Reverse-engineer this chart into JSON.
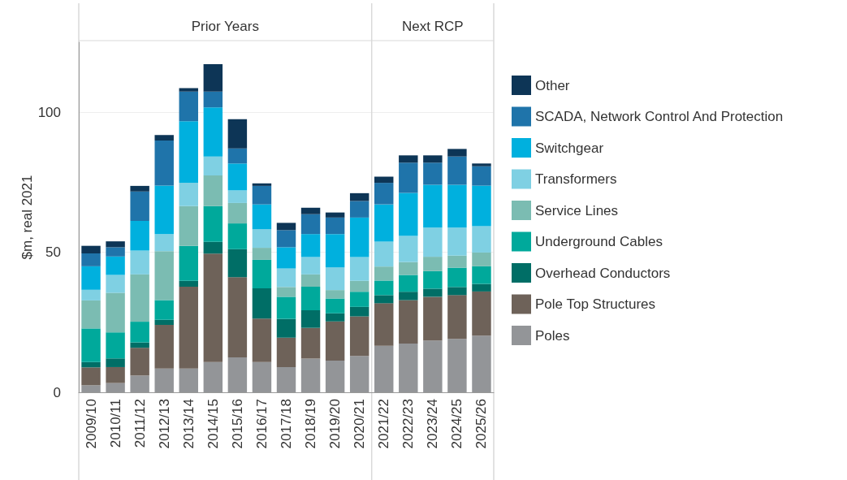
{
  "chart_data": {
    "type": "bar",
    "stacked": true,
    "ylabel": "$m, real 2021",
    "categories": [
      "2009/10",
      "2010/11",
      "2011/12",
      "2012/13",
      "2013/14",
      "2014/15",
      "2015/16",
      "2016/17",
      "2017/18",
      "2018/19",
      "2019/20",
      "2020/21",
      "2021/22",
      "2022/23",
      "2023/24",
      "2024/25",
      "2025/26"
    ],
    "series": [
      {
        "name": "Poles",
        "color": "#939598",
        "values": [
          2.5,
          3.3,
          6.0,
          8.5,
          8.5,
          10.8,
          12.5,
          10.8,
          9.0,
          12.0,
          11.3,
          13.0,
          16.6,
          17.4,
          18.5,
          19.1,
          20.2
        ]
      },
      {
        "name": "Pole Top Structures",
        "color": "#6e6259",
        "values": [
          6.4,
          5.7,
          9.9,
          15.6,
          29.2,
          38.7,
          28.6,
          15.5,
          10.5,
          11.0,
          14.0,
          14.1,
          15.2,
          15.5,
          15.6,
          15.6,
          15.8
        ]
      },
      {
        "name": "Overhead Conductors",
        "color": "#006e66",
        "values": [
          1.9,
          3.1,
          1.9,
          1.8,
          2.1,
          4.2,
          10.0,
          10.8,
          6.7,
          6.3,
          2.9,
          3.4,
          2.9,
          3.0,
          2.9,
          2.9,
          2.7
        ]
      },
      {
        "name": "Underground Cables",
        "color": "#00a99b",
        "values": [
          12.0,
          9.3,
          7.4,
          7.0,
          12.5,
          12.8,
          9.2,
          10.2,
          7.9,
          8.4,
          5.3,
          5.4,
          5.2,
          6.0,
          6.3,
          6.9,
          6.3
        ]
      },
      {
        "name": "Service Lines",
        "color": "#7bbcb2",
        "values": [
          10.0,
          14.1,
          16.9,
          17.5,
          14.2,
          10.9,
          7.3,
          4.3,
          3.5,
          4.4,
          3.0,
          3.9,
          5.0,
          4.6,
          5.1,
          4.3,
          4.9
        ]
      },
      {
        "name": "Transformers",
        "color": "#7fd0e3",
        "values": [
          3.8,
          6.4,
          8.5,
          6.1,
          8.3,
          6.8,
          4.5,
          6.6,
          6.6,
          6.2,
          8.1,
          8.5,
          8.9,
          9.3,
          10.4,
          10.0,
          9.4
        ]
      },
      {
        "name": "Switchgear",
        "color": "#00b0de",
        "values": [
          8.4,
          6.6,
          10.6,
          17.3,
          22.0,
          17.5,
          9.6,
          8.9,
          7.6,
          8.2,
          11.9,
          14.1,
          13.3,
          15.4,
          15.3,
          15.3,
          14.5
        ]
      },
      {
        "name": "SCADA, Network Control And Protection",
        "color": "#1f74aa",
        "values": [
          4.6,
          3.3,
          10.5,
          16.1,
          10.6,
          5.7,
          5.4,
          6.6,
          6.1,
          7.1,
          5.9,
          5.9,
          7.7,
          10.8,
          7.9,
          10.1,
          6.9
        ]
      },
      {
        "name": "Other",
        "color": "#0d3556",
        "values": [
          2.7,
          2.1,
          2.0,
          2.0,
          1.2,
          9.8,
          10.4,
          0.9,
          2.6,
          2.3,
          1.8,
          2.8,
          2.2,
          2.6,
          2.6,
          2.7,
          1.0
        ]
      }
    ],
    "ylim": [
      0,
      125
    ],
    "yticks": [
      0,
      50,
      100
    ],
    "grid": "y",
    "legend": "right",
    "annotations": [
      "Prior Years",
      "Next RCP"
    ],
    "ref_lines": [
      {
        "axis": "x",
        "value": "2021/22",
        "color": "#d9d9d9"
      }
    ]
  }
}
